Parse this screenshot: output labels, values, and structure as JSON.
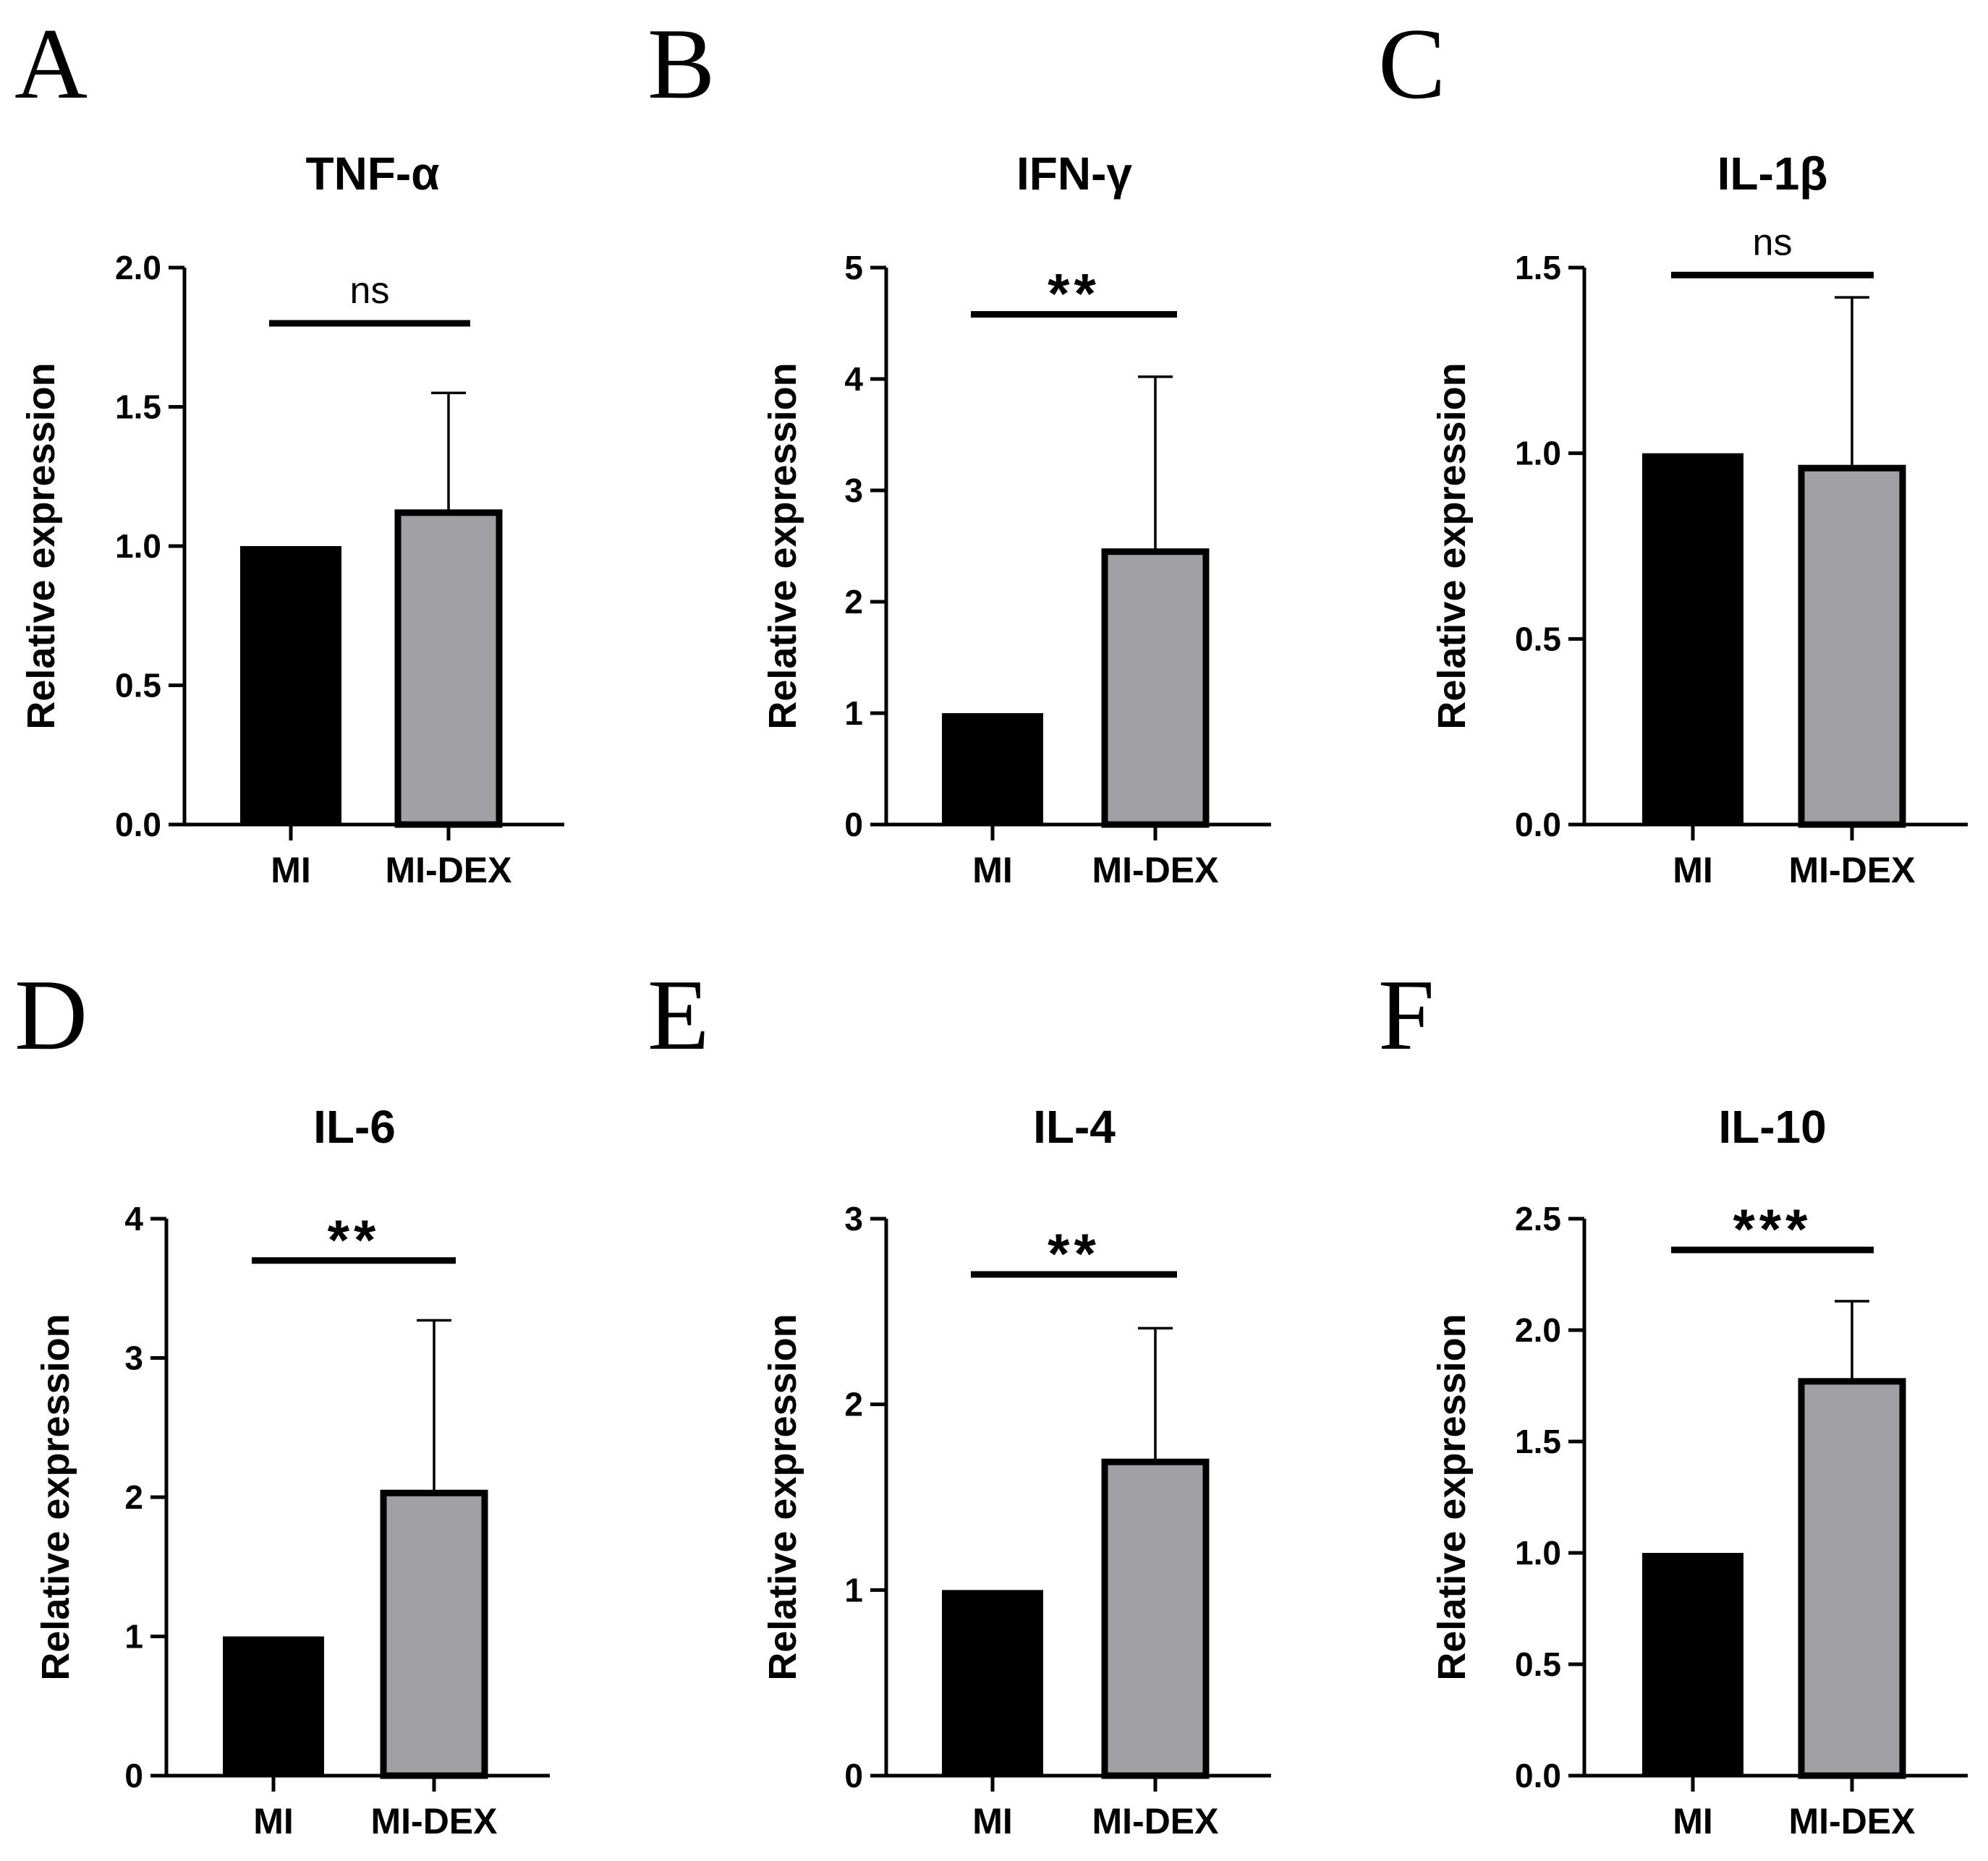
{
  "figure": {
    "description_panels": [
      "A",
      "B",
      "C",
      "D",
      "E",
      "F"
    ]
  },
  "colors": {
    "mi_bar": "#000000",
    "mi_dex_bar": "#a0a0a5",
    "axis": "#000000"
  },
  "chart_data": [
    {
      "panel": "A",
      "type": "bar",
      "title": "TNF-α",
      "ylabel": "Relative expression",
      "xlabel": "",
      "categories": [
        "MI",
        "MI-DEX"
      ],
      "values": [
        1.0,
        1.12
      ],
      "error_upper": [
        null,
        1.55
      ],
      "ylim": [
        0,
        2.0
      ],
      "yticks": [
        0.0,
        0.5,
        1.0,
        1.5,
        2.0
      ],
      "ytick_labels": [
        "0.0",
        "0.5",
        "1.0",
        "1.5",
        "2.0"
      ],
      "significance": {
        "label": "ns",
        "level_value": 1.8
      }
    },
    {
      "panel": "B",
      "type": "bar",
      "title": "IFN-γ",
      "ylabel": "Relative expression",
      "xlabel": "",
      "categories": [
        "MI",
        "MI-DEX"
      ],
      "values": [
        1.0,
        2.45
      ],
      "error_upper": [
        null,
        4.02
      ],
      "ylim": [
        0,
        5
      ],
      "yticks": [
        0,
        1,
        2,
        3,
        4,
        5
      ],
      "ytick_labels": [
        "0",
        "1",
        "2",
        "3",
        "4",
        "5"
      ],
      "significance": {
        "label": "**",
        "level_value": 4.58
      }
    },
    {
      "panel": "C",
      "type": "bar",
      "title": "IL-1β",
      "ylabel": "Relative expression",
      "xlabel": "",
      "categories": [
        "MI",
        "MI-DEX"
      ],
      "values": [
        1.0,
        0.96
      ],
      "error_upper": [
        null,
        1.42
      ],
      "ylim": [
        0,
        1.5
      ],
      "yticks": [
        0.0,
        0.5,
        1.0,
        1.5
      ],
      "ytick_labels": [
        "0.0",
        "0.5",
        "1.0",
        "1.5"
      ],
      "significance": {
        "label": "ns",
        "level_value": 1.48
      }
    },
    {
      "panel": "D",
      "type": "bar",
      "title": "IL-6",
      "ylabel": "Relative expression",
      "xlabel": "",
      "categories": [
        "MI",
        "MI-DEX"
      ],
      "values": [
        1.0,
        2.03
      ],
      "error_upper": [
        null,
        3.27
      ],
      "ylim": [
        0,
        4
      ],
      "yticks": [
        0,
        1,
        2,
        3,
        4
      ],
      "ytick_labels": [
        "0",
        "1",
        "2",
        "3",
        "4"
      ],
      "significance": {
        "label": "**",
        "level_value": 3.7
      }
    },
    {
      "panel": "E",
      "type": "bar",
      "title": "IL-4",
      "ylabel": "Relative expression",
      "xlabel": "",
      "categories": [
        "MI",
        "MI-DEX"
      ],
      "values": [
        1.0,
        1.69
      ],
      "error_upper": [
        null,
        2.41
      ],
      "ylim": [
        0,
        3
      ],
      "yticks": [
        0,
        1,
        2,
        3
      ],
      "ytick_labels": [
        "0",
        "1",
        "2",
        "3"
      ],
      "significance": {
        "label": "**",
        "level_value": 2.7
      }
    },
    {
      "panel": "F",
      "type": "bar",
      "title": "IL-10",
      "ylabel": "Relative expression",
      "xlabel": "",
      "categories": [
        "MI",
        "MI-DEX"
      ],
      "values": [
        1.0,
        1.77
      ],
      "error_upper": [
        null,
        2.13
      ],
      "ylim": [
        0,
        2.5
      ],
      "yticks": [
        0.0,
        0.5,
        1.0,
        1.5,
        2.0,
        2.5
      ],
      "ytick_labels": [
        "0.0",
        "0.5",
        "1.0",
        "1.5",
        "2.0",
        "2.5"
      ],
      "significance": {
        "label": "***",
        "level_value": 2.36
      }
    }
  ]
}
